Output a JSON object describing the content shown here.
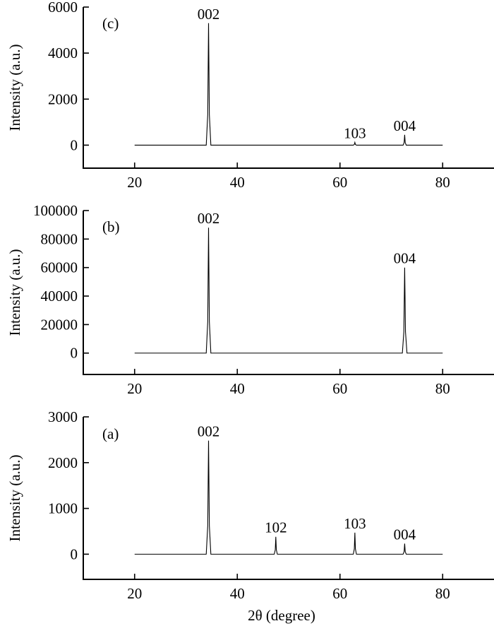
{
  "chart_data": [
    {
      "panel": "c",
      "type": "line",
      "panel_label": "(c)",
      "ylabel": "Intensity (a.u.)",
      "xlabel": "",
      "xlim": [
        10,
        90
      ],
      "ylim": [
        -1000,
        6000
      ],
      "xticks": [
        20,
        40,
        60,
        80
      ],
      "yticks": [
        0,
        2000,
        4000,
        6000
      ],
      "x_range": [
        20,
        80
      ],
      "baseline": 0,
      "peaks": [
        {
          "x": 34.4,
          "y": 5300,
          "label": "002"
        },
        {
          "x": 62.9,
          "y": 120,
          "label": "103"
        },
        {
          "x": 72.6,
          "y": 450,
          "label": "004"
        }
      ]
    },
    {
      "panel": "b",
      "type": "line",
      "panel_label": "(b)",
      "ylabel": "Intensity (a.u.)",
      "xlabel": "",
      "xlim": [
        10,
        90
      ],
      "ylim": [
        -15000,
        100000
      ],
      "xticks": [
        20,
        40,
        60,
        80
      ],
      "yticks": [
        0,
        20000,
        40000,
        60000,
        80000,
        100000
      ],
      "x_range": [
        20,
        80
      ],
      "baseline": 0,
      "peaks": [
        {
          "x": 34.4,
          "y": 88000,
          "label": "002"
        },
        {
          "x": 72.6,
          "y": 60000,
          "label": "004"
        }
      ]
    },
    {
      "panel": "a",
      "type": "line",
      "panel_label": "(a)",
      "ylabel": "Intensity (a.u.)",
      "xlabel": "2θ (degree)",
      "xlim": [
        10,
        90
      ],
      "ylim": [
        -550,
        3000
      ],
      "xticks": [
        20,
        40,
        60,
        80
      ],
      "yticks": [
        0,
        1000,
        2000,
        3000
      ],
      "x_range": [
        20,
        80
      ],
      "baseline": 0,
      "peaks": [
        {
          "x": 34.4,
          "y": 2480,
          "label": "002"
        },
        {
          "x": 47.5,
          "y": 380,
          "label": "102"
        },
        {
          "x": 62.9,
          "y": 470,
          "label": "103"
        },
        {
          "x": 72.6,
          "y": 230,
          "label": "004"
        }
      ]
    }
  ]
}
